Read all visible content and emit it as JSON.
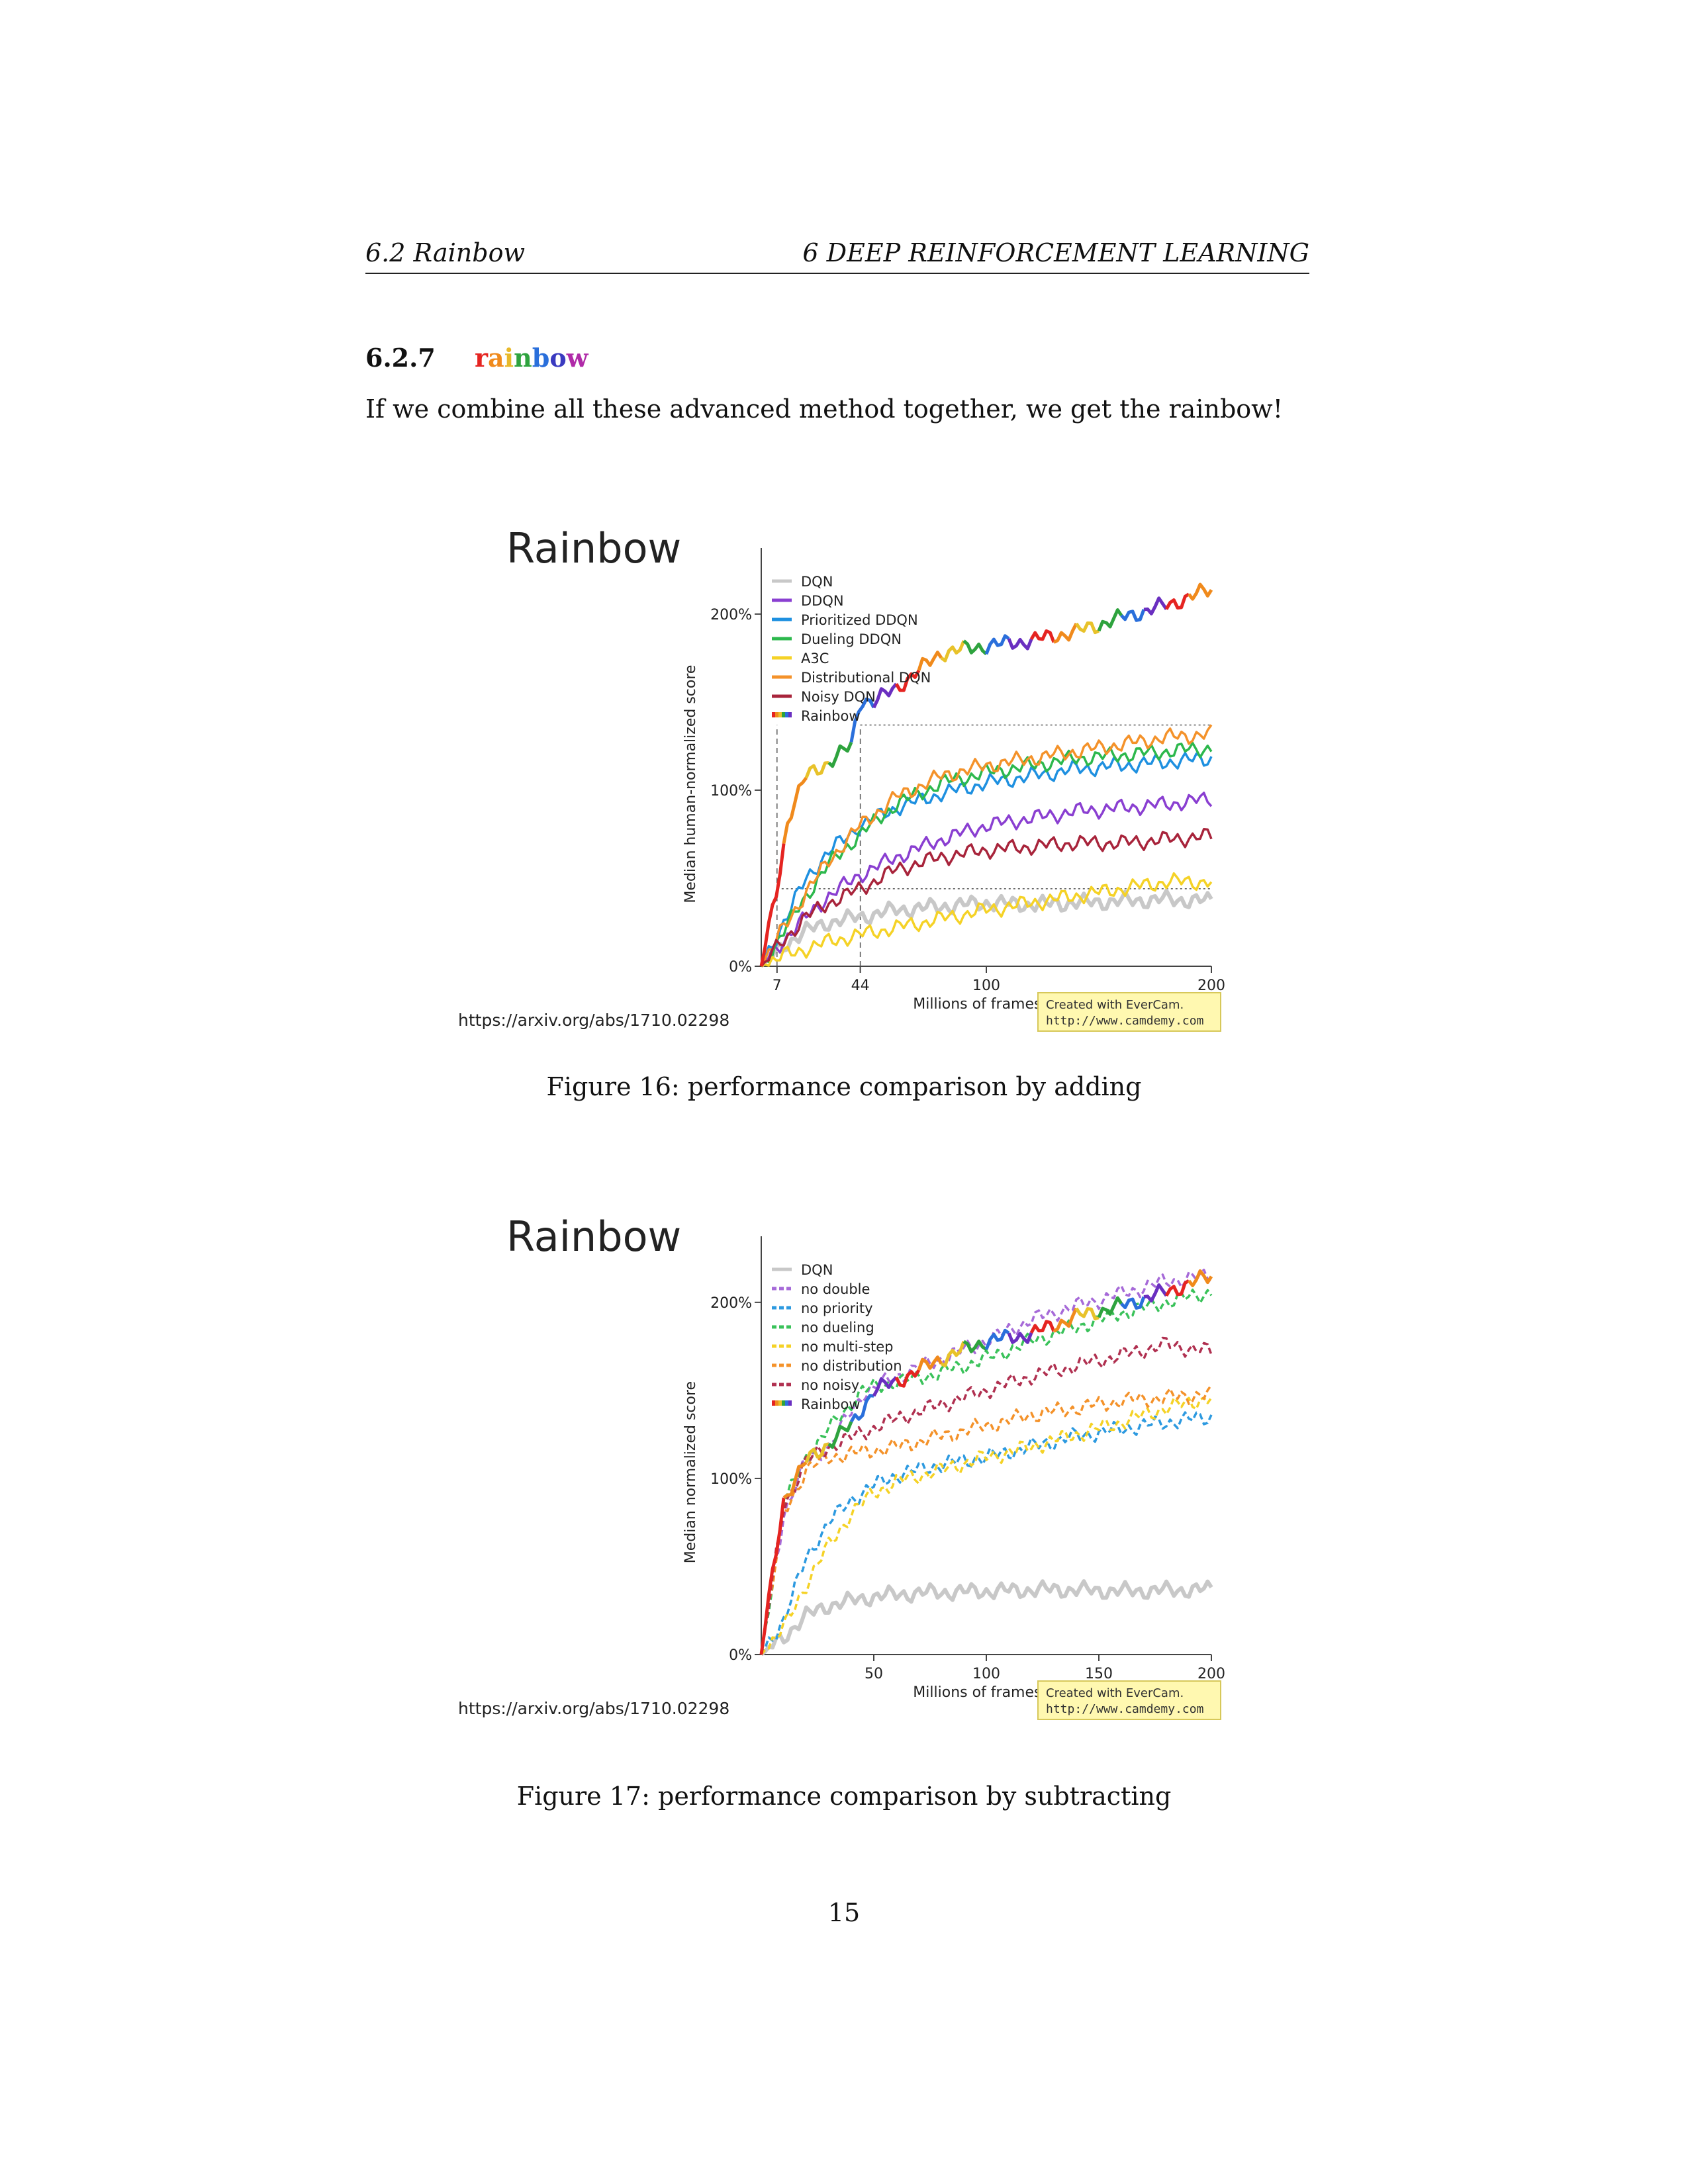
{
  "header": {
    "left": "6.2   Rainbow",
    "right": "6   DEEP REINFORCEMENT LEARNING"
  },
  "section": {
    "number": "6.2.7",
    "title_letters": [
      {
        "ch": "r",
        "color": "#e52421"
      },
      {
        "ch": "a",
        "color": "#f08a1c"
      },
      {
        "ch": "i",
        "color": "#e8b92a"
      },
      {
        "ch": "n",
        "color": "#2ea33e"
      },
      {
        "ch": "b",
        "color": "#2a6fdb"
      },
      {
        "ch": "o",
        "color": "#3a3ac0"
      },
      {
        "ch": "w",
        "color": "#b02aa8"
      }
    ]
  },
  "paragraph": "If we combine all these advanced method together, we get the rainbow!",
  "figures": [
    {
      "caption": "Figure 16: performance comparison by adding"
    },
    {
      "caption": "Figure 17: performance comparison by subtracting"
    }
  ],
  "page_number": "15",
  "chart_data": [
    {
      "type": "line",
      "title": "Rainbow",
      "source": "https://arxiv.org/abs/1710.02298",
      "xlabel": "Millions of frames",
      "ylabel": "Median human-normalized score",
      "xticks": [
        7,
        44,
        100,
        200
      ],
      "xtick_labels": [
        "7",
        "44",
        "100",
        "200"
      ],
      "yticks": [
        0,
        100,
        200
      ],
      "ytick_labels": [
        "0%",
        "100%",
        "200%"
      ],
      "xlim": [
        0,
        200
      ],
      "ylim": [
        0,
        230
      ],
      "legend_position": "top-left",
      "reference_lines": [
        {
          "y": 44,
          "from_x": 7,
          "to_x": 200
        },
        {
          "y": 137,
          "from_x": 44,
          "to_x": 200
        }
      ],
      "reference_verticals": [
        7,
        44
      ],
      "watermark": [
        "Created with EverCam.",
        "http://www.camdemy.com"
      ],
      "series": [
        {
          "name": "DQN",
          "color": "#c8c8c8",
          "dashed": false,
          "x": [
            0,
            10,
            20,
            30,
            44,
            60,
            80,
            100,
            120,
            140,
            160,
            180,
            200
          ],
          "y": [
            0,
            12,
            20,
            25,
            28,
            32,
            34,
            36,
            35,
            36,
            37,
            38,
            37
          ]
        },
        {
          "name": "DDQN",
          "color": "#8a3fd1",
          "dashed": false,
          "x": [
            0,
            10,
            20,
            30,
            44,
            60,
            80,
            100,
            120,
            140,
            160,
            180,
            200
          ],
          "y": [
            0,
            15,
            28,
            40,
            52,
            62,
            72,
            80,
            84,
            88,
            90,
            92,
            95
          ]
        },
        {
          "name": "Prioritized DDQN",
          "color": "#1e90e0",
          "dashed": false,
          "x": [
            0,
            10,
            20,
            30,
            44,
            60,
            80,
            100,
            120,
            140,
            160,
            180,
            200
          ],
          "y": [
            0,
            25,
            50,
            65,
            80,
            90,
            98,
            104,
            108,
            112,
            114,
            116,
            118
          ]
        },
        {
          "name": "Dueling DDQN",
          "color": "#2db84d",
          "dashed": false,
          "x": [
            0,
            10,
            20,
            30,
            44,
            60,
            80,
            100,
            120,
            140,
            160,
            180,
            200
          ],
          "y": [
            0,
            20,
            40,
            58,
            75,
            92,
            104,
            110,
            114,
            118,
            120,
            122,
            124
          ]
        },
        {
          "name": "A3C",
          "color": "#f5d226",
          "dashed": false,
          "x": [
            0,
            10,
            20,
            30,
            44,
            60,
            80,
            100,
            120,
            140,
            160,
            180,
            200
          ],
          "y": [
            0,
            6,
            10,
            14,
            18,
            22,
            27,
            32,
            36,
            40,
            44,
            48,
            48
          ]
        },
        {
          "name": "Distributional DQN",
          "color": "#f4922a",
          "dashed": false,
          "x": [
            0,
            10,
            20,
            30,
            44,
            60,
            80,
            100,
            120,
            140,
            160,
            180,
            200
          ],
          "y": [
            0,
            22,
            42,
            60,
            80,
            96,
            108,
            114,
            118,
            122,
            126,
            130,
            132
          ]
        },
        {
          "name": "Noisy DQN",
          "color": "#a8243b",
          "dashed": false,
          "x": [
            0,
            10,
            20,
            30,
            44,
            60,
            80,
            100,
            120,
            140,
            160,
            180,
            200
          ],
          "y": [
            0,
            15,
            28,
            36,
            44,
            55,
            62,
            66,
            68,
            70,
            70,
            72,
            74
          ]
        },
        {
          "name": "Rainbow",
          "color": "rainbow",
          "dashed": false,
          "x": [
            0,
            7,
            12,
            20,
            30,
            40,
            44,
            50,
            60,
            80,
            100,
            120,
            140,
            160,
            180,
            200
          ],
          "y": [
            0,
            44,
            85,
            108,
            116,
            125,
            152,
            150,
            158,
            178,
            182,
            185,
            190,
            198,
            205,
            214
          ]
        }
      ]
    },
    {
      "type": "line",
      "title": "Rainbow",
      "source": "https://arxiv.org/abs/1710.02298",
      "xlabel": "Millions of frames",
      "ylabel": "Median normalized score",
      "xticks": [
        50,
        100,
        150,
        200
      ],
      "xtick_labels": [
        "50",
        "100",
        "150",
        "200"
      ],
      "yticks": [
        0,
        100,
        200
      ],
      "ytick_labels": [
        "0%",
        "100%",
        "200%"
      ],
      "xlim": [
        0,
        200
      ],
      "ylim": [
        0,
        230
      ],
      "legend_position": "top-left",
      "watermark": [
        "Created with EverCam.",
        "http://www.camdemy.com"
      ],
      "series": [
        {
          "name": "DQN",
          "color": "#c8c8c8",
          "dashed": false,
          "x": [
            0,
            10,
            20,
            30,
            50,
            70,
            100,
            130,
            160,
            200
          ],
          "y": [
            0,
            10,
            22,
            28,
            33,
            35,
            36,
            37,
            36,
            37
          ]
        },
        {
          "name": "no double",
          "color": "#a66ad8",
          "dashed": true,
          "x": [
            0,
            5,
            10,
            20,
            30,
            45,
            60,
            80,
            100,
            120,
            140,
            160,
            180,
            200
          ],
          "y": [
            0,
            40,
            80,
            110,
            118,
            148,
            158,
            168,
            178,
            190,
            198,
            205,
            212,
            215
          ]
        },
        {
          "name": "no priority",
          "color": "#2d9ae0",
          "dashed": true,
          "x": [
            0,
            10,
            20,
            30,
            40,
            50,
            60,
            80,
            100,
            120,
            140,
            160,
            180,
            200
          ],
          "y": [
            0,
            20,
            55,
            75,
            88,
            96,
            102,
            108,
            112,
            118,
            124,
            128,
            132,
            135
          ]
        },
        {
          "name": "no dueling",
          "color": "#3ac25a",
          "dashed": true,
          "x": [
            0,
            5,
            10,
            20,
            30,
            45,
            60,
            80,
            100,
            120,
            140,
            160,
            180,
            200
          ],
          "y": [
            0,
            42,
            85,
            112,
            128,
            150,
            155,
            160,
            168,
            178,
            186,
            194,
            200,
            206
          ]
        },
        {
          "name": "no multi-step",
          "color": "#f5d226",
          "dashed": true,
          "x": [
            0,
            10,
            20,
            30,
            40,
            50,
            60,
            80,
            100,
            120,
            140,
            160,
            180,
            200
          ],
          "y": [
            0,
            15,
            40,
            62,
            80,
            92,
            98,
            105,
            112,
            118,
            125,
            132,
            140,
            146
          ]
        },
        {
          "name": "no distribution",
          "color": "#f4922a",
          "dashed": true,
          "x": [
            0,
            5,
            10,
            20,
            30,
            45,
            60,
            80,
            100,
            120,
            140,
            160,
            180,
            200
          ],
          "y": [
            0,
            40,
            80,
            105,
            112,
            115,
            118,
            124,
            130,
            136,
            140,
            144,
            146,
            148
          ]
        },
        {
          "name": "no noisy",
          "color": "#b03050",
          "dashed": true,
          "x": [
            0,
            5,
            10,
            20,
            30,
            45,
            60,
            80,
            100,
            120,
            140,
            160,
            180,
            200
          ],
          "y": [
            0,
            42,
            84,
            110,
            118,
            126,
            134,
            142,
            150,
            158,
            164,
            170,
            176,
            172
          ]
        },
        {
          "name": "Rainbow",
          "color": "rainbow",
          "dashed": false,
          "x": [
            0,
            5,
            10,
            20,
            30,
            40,
            50,
            60,
            80,
            100,
            120,
            140,
            160,
            180,
            200
          ],
          "y": [
            0,
            45,
            88,
            110,
            120,
            130,
            150,
            155,
            168,
            178,
            182,
            192,
            198,
            206,
            215
          ]
        }
      ]
    }
  ]
}
